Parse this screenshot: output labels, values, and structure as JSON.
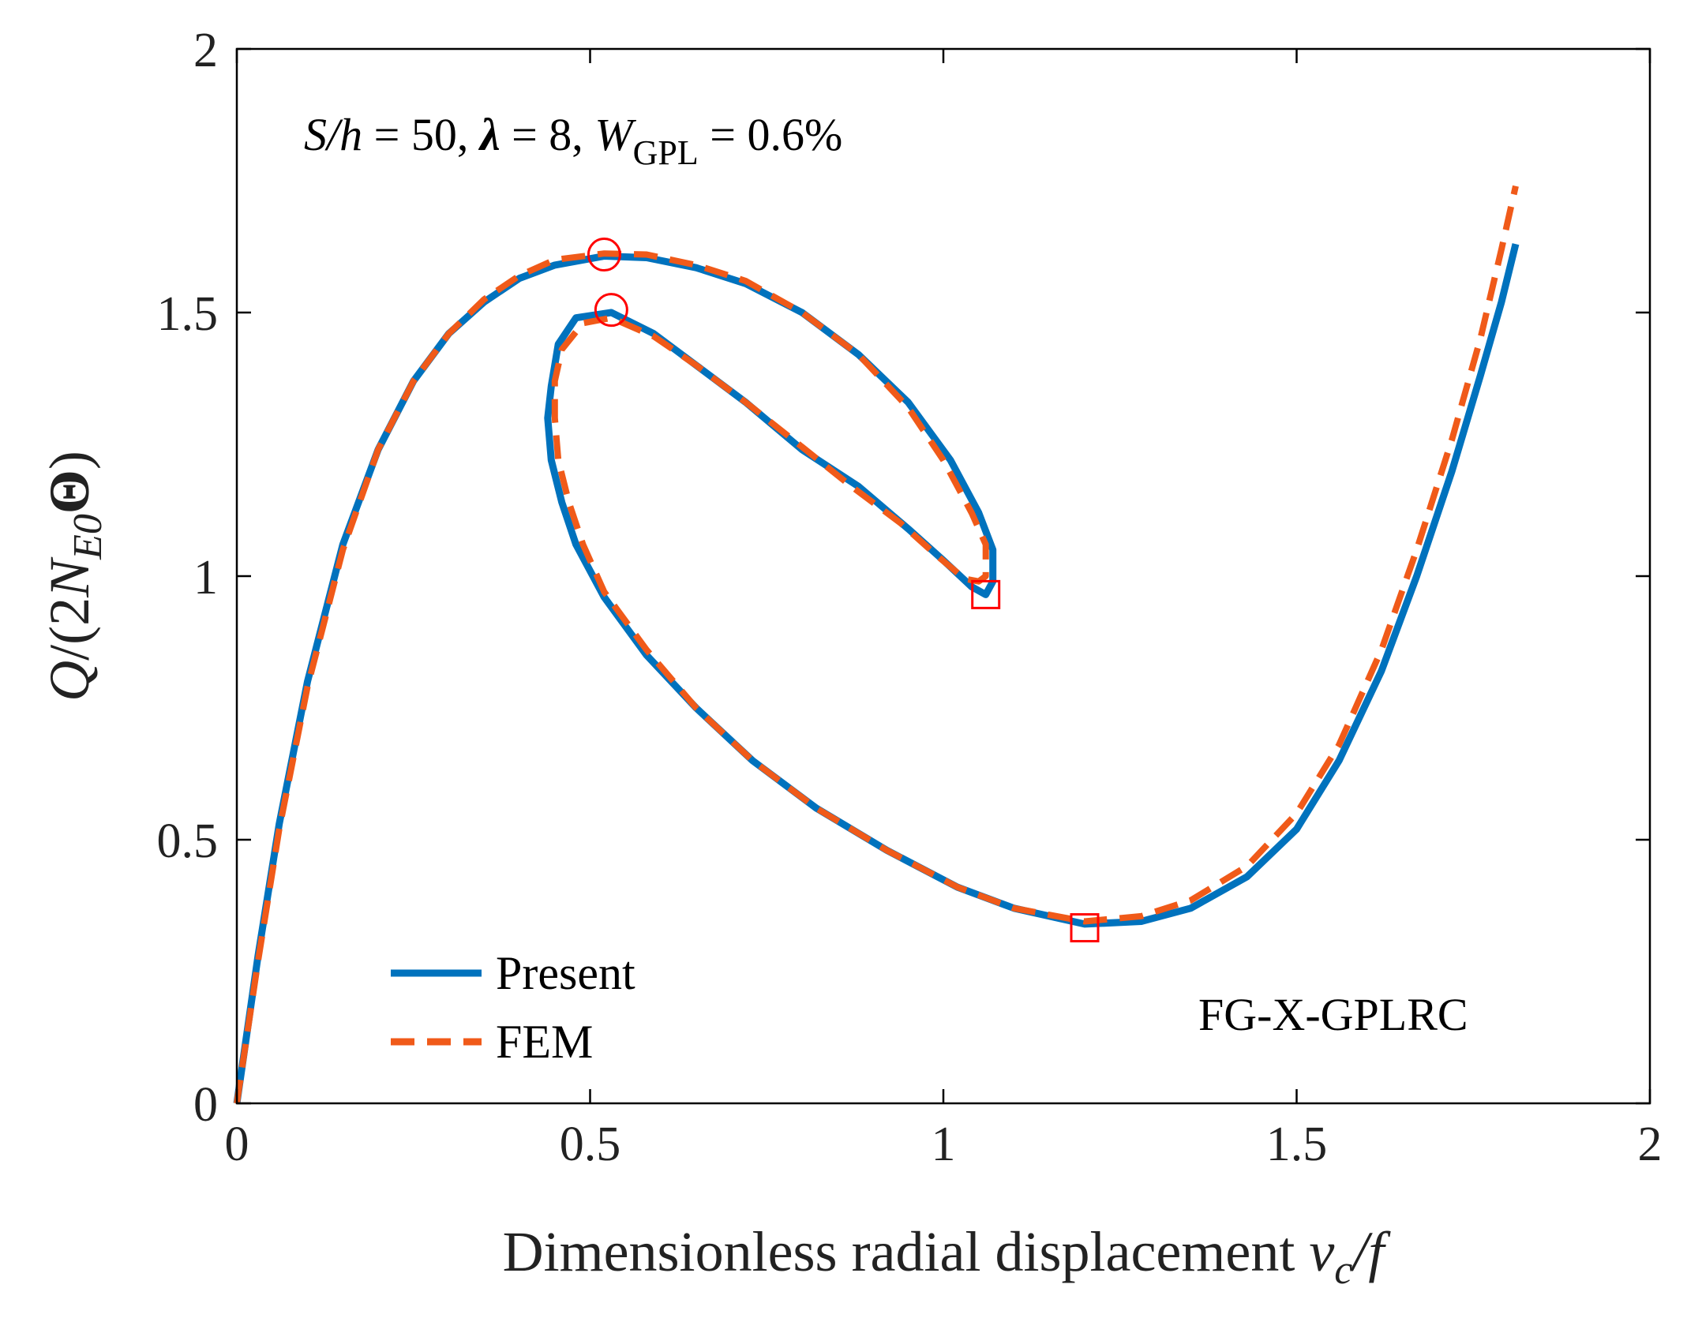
{
  "chart_data": {
    "type": "line",
    "title": "",
    "xlabel": "Dimensionless radial displacement v_c/f",
    "xlabel_parts": {
      "text": "Dimensionless radial displacement ",
      "var": "v",
      "sub": "c",
      "tail": "/f"
    },
    "ylabel": "Q/(2N_E0 Θ)",
    "ylabel_parts": {
      "pre": "Q",
      "mid": "/(2",
      "N": "N",
      "sub": "E0",
      "theta": "Θ",
      "close": ")"
    },
    "xlim": [
      0,
      2
    ],
    "ylim": [
      0,
      2
    ],
    "xticks": [
      0,
      0.5,
      1,
      1.5,
      2
    ],
    "xtick_labels": [
      "0",
      "0.5",
      "1",
      "1.5",
      "2"
    ],
    "yticks": [
      0,
      0.5,
      1,
      1.5,
      2
    ],
    "ytick_labels": [
      "0",
      "0.5",
      "1",
      "1.5",
      "2"
    ],
    "grid": false,
    "legend_position": "bottom-left",
    "annotation_top": {
      "S_h_label": "S/h",
      "S_h_value": " = 50, ",
      "lambda_label": "λ",
      "lambda_value": " = 8, ",
      "W_label": "W",
      "W_sub": "GPL",
      "W_value": " = 0.6%"
    },
    "annotation_bottom": "FG-X-GPLRC",
    "series": [
      {
        "name": "Present",
        "color": "#0072bd",
        "style": "solid",
        "points": [
          [
            0,
            0
          ],
          [
            0.03,
            0.28
          ],
          [
            0.06,
            0.53
          ],
          [
            0.1,
            0.8
          ],
          [
            0.15,
            1.06
          ],
          [
            0.2,
            1.24
          ],
          [
            0.25,
            1.37
          ],
          [
            0.3,
            1.46
          ],
          [
            0.35,
            1.52
          ],
          [
            0.4,
            1.565
          ],
          [
            0.45,
            1.59
          ],
          [
            0.52,
            1.607
          ],
          [
            0.58,
            1.604
          ],
          [
            0.65,
            1.585
          ],
          [
            0.72,
            1.555
          ],
          [
            0.8,
            1.5
          ],
          [
            0.88,
            1.42
          ],
          [
            0.95,
            1.33
          ],
          [
            1.01,
            1.22
          ],
          [
            1.05,
            1.12
          ],
          [
            1.07,
            1.05
          ],
          [
            1.07,
            0.99
          ],
          [
            1.06,
            0.965
          ],
          [
            1.04,
            0.98
          ],
          [
            1.0,
            1.03
          ],
          [
            0.95,
            1.09
          ],
          [
            0.88,
            1.17
          ],
          [
            0.8,
            1.24
          ],
          [
            0.72,
            1.33
          ],
          [
            0.65,
            1.4
          ],
          [
            0.59,
            1.46
          ],
          [
            0.53,
            1.5
          ],
          [
            0.48,
            1.49
          ],
          [
            0.455,
            1.44
          ],
          [
            0.445,
            1.36
          ],
          [
            0.44,
            1.3
          ],
          [
            0.445,
            1.22
          ],
          [
            0.46,
            1.14
          ],
          [
            0.48,
            1.06
          ],
          [
            0.52,
            0.96
          ],
          [
            0.58,
            0.85
          ],
          [
            0.65,
            0.75
          ],
          [
            0.73,
            0.65
          ],
          [
            0.82,
            0.56
          ],
          [
            0.92,
            0.48
          ],
          [
            1.02,
            0.41
          ],
          [
            1.1,
            0.37
          ],
          [
            1.2,
            0.34
          ],
          [
            1.28,
            0.345
          ],
          [
            1.35,
            0.37
          ],
          [
            1.43,
            0.43
          ],
          [
            1.5,
            0.52
          ],
          [
            1.56,
            0.65
          ],
          [
            1.62,
            0.82
          ],
          [
            1.67,
            1.0
          ],
          [
            1.72,
            1.2
          ],
          [
            1.76,
            1.38
          ],
          [
            1.79,
            1.52
          ],
          [
            1.81,
            1.63
          ]
        ]
      },
      {
        "name": "FEM",
        "color": "#f05a19",
        "style": "dashed",
        "points": [
          [
            0,
            0
          ],
          [
            0.03,
            0.27
          ],
          [
            0.06,
            0.52
          ],
          [
            0.1,
            0.79
          ],
          [
            0.15,
            1.05
          ],
          [
            0.2,
            1.24
          ],
          [
            0.25,
            1.37
          ],
          [
            0.3,
            1.46
          ],
          [
            0.35,
            1.525
          ],
          [
            0.4,
            1.57
          ],
          [
            0.45,
            1.6
          ],
          [
            0.52,
            1.612
          ],
          [
            0.58,
            1.61
          ],
          [
            0.65,
            1.59
          ],
          [
            0.72,
            1.56
          ],
          [
            0.8,
            1.5
          ],
          [
            0.88,
            1.42
          ],
          [
            0.95,
            1.32
          ],
          [
            1.0,
            1.22
          ],
          [
            1.04,
            1.12
          ],
          [
            1.06,
            1.06
          ],
          [
            1.06,
            1.0
          ],
          [
            1.05,
            0.99
          ],
          [
            1.03,
            0.995
          ],
          [
            0.99,
            1.04
          ],
          [
            0.94,
            1.1
          ],
          [
            0.87,
            1.17
          ],
          [
            0.8,
            1.245
          ],
          [
            0.72,
            1.33
          ],
          [
            0.65,
            1.4
          ],
          [
            0.59,
            1.455
          ],
          [
            0.53,
            1.49
          ],
          [
            0.49,
            1.48
          ],
          [
            0.46,
            1.43
          ],
          [
            0.45,
            1.37
          ],
          [
            0.45,
            1.3
          ],
          [
            0.455,
            1.22
          ],
          [
            0.47,
            1.14
          ],
          [
            0.49,
            1.06
          ],
          [
            0.52,
            0.97
          ],
          [
            0.58,
            0.86
          ],
          [
            0.65,
            0.75
          ],
          [
            0.73,
            0.65
          ],
          [
            0.82,
            0.56
          ],
          [
            0.92,
            0.48
          ],
          [
            1.02,
            0.41
          ],
          [
            1.1,
            0.37
          ],
          [
            1.2,
            0.345
          ],
          [
            1.28,
            0.355
          ],
          [
            1.35,
            0.385
          ],
          [
            1.43,
            0.45
          ],
          [
            1.5,
            0.55
          ],
          [
            1.56,
            0.68
          ],
          [
            1.62,
            0.86
          ],
          [
            1.67,
            1.05
          ],
          [
            1.72,
            1.26
          ],
          [
            1.76,
            1.45
          ],
          [
            1.79,
            1.62
          ],
          [
            1.81,
            1.74
          ]
        ]
      }
    ],
    "markers": [
      {
        "shape": "circle",
        "color": "#ff0000",
        "x": 0.52,
        "y": 1.61
      },
      {
        "shape": "circle",
        "color": "#ff0000",
        "x": 0.53,
        "y": 1.505
      },
      {
        "shape": "square",
        "color": "#ff0000",
        "x": 1.06,
        "y": 0.965
      },
      {
        "shape": "square",
        "color": "#ff0000",
        "x": 1.2,
        "y": 0.333
      }
    ]
  }
}
